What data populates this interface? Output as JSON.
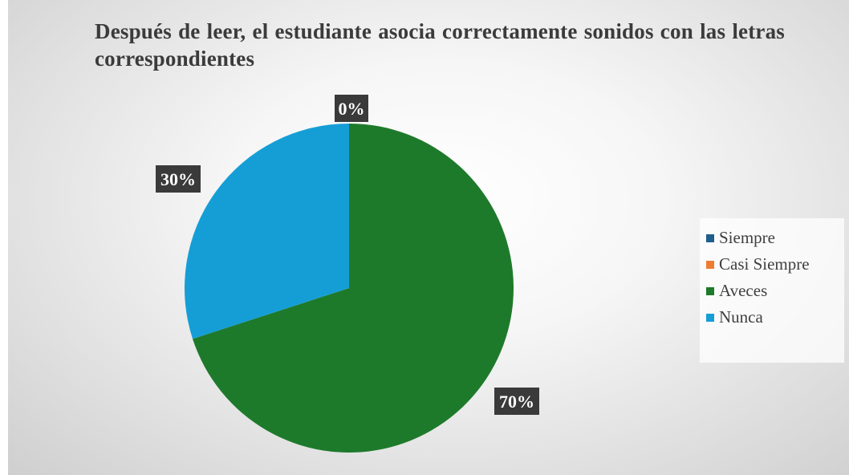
{
  "chart_data": {
    "type": "pie",
    "title": "Después de leer, el estudiante asocia correctamente sonidos con las letras correspondientes",
    "categories": [
      "Siempre",
      "Casi Siempre",
      "Aveces",
      "Nunca"
    ],
    "values": [
      0,
      0,
      70,
      30
    ],
    "data_labels": [
      "",
      "0%",
      "70%",
      "30%"
    ],
    "colors": [
      "#1f5f8b",
      "#ed7d31",
      "#1e7a2b",
      "#159ed6"
    ],
    "legend_position": "right",
    "start_angle": "12 o'clock, clockwise"
  },
  "colors": {
    "label_box": "#3a3a3a",
    "label_text": "#ffffff"
  }
}
